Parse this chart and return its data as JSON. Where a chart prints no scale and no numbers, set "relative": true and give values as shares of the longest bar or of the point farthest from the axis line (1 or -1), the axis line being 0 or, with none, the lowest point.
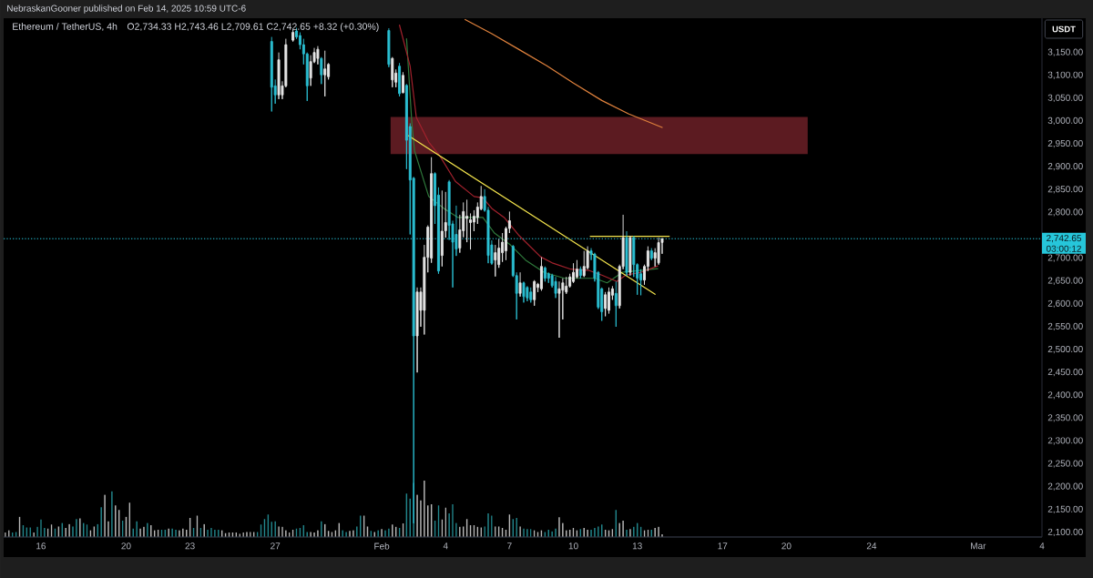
{
  "chart_data": [
    {
      "type": "candlestick",
      "title": "Ethereum / TetherUS, 4h",
      "subtitle": "O2,734.33 H2,743.46 L2,709.61 C2,742.65 +8.32 (+0.30%)",
      "ylabel": "USDT",
      "annotations": [
        "NebraskanGooner published on Feb 14, 2025 10:59 UTC-6",
        "03:00:12"
      ],
      "x": [
        "2025-01-26T20:00",
        "2025-01-27T00:00",
        "2025-01-27T04:00",
        "2025-01-27T08:00",
        "2025-01-27T12:00",
        "2025-01-27T20:00",
        "2025-01-28T00:00",
        "2025-01-28T04:00",
        "2025-01-28T08:00",
        "2025-01-28T12:00",
        "2025-01-28T16:00",
        "2025-01-28T20:00",
        "2025-01-29T00:00",
        "2025-01-29T04:00",
        "2025-01-29T08:00",
        "2025-01-29T12:00",
        "2025-02-01T08:00",
        "2025-02-01T12:00",
        "2025-02-01T16:00",
        "2025-02-01T20:00",
        "2025-02-02T00:00",
        "2025-02-02T04:00",
        "2025-02-02T08:00",
        "2025-02-02T12:00",
        "2025-02-02T16:00",
        "2025-02-02T20:00",
        "2025-02-03T00:00",
        "2025-02-03T04:00",
        "2025-02-03T08:00",
        "2025-02-03T12:00",
        "2025-02-03T16:00",
        "2025-02-03T20:00",
        "2025-02-04T00:00",
        "2025-02-04T04:00",
        "2025-02-04T08:00",
        "2025-02-04T12:00",
        "2025-02-04T16:00",
        "2025-02-04T20:00",
        "2025-02-05T00:00",
        "2025-02-05T04:00",
        "2025-02-05T08:00",
        "2025-02-05T12:00",
        "2025-02-05T16:00",
        "2025-02-05T20:00",
        "2025-02-06T00:00",
        "2025-02-06T04:00",
        "2025-02-06T08:00",
        "2025-02-06T12:00",
        "2025-02-06T16:00",
        "2025-02-06T20:00",
        "2025-02-07T00:00",
        "2025-02-07T04:00",
        "2025-02-07T08:00",
        "2025-02-07T12:00",
        "2025-02-07T16:00",
        "2025-02-07T20:00",
        "2025-02-08T00:00",
        "2025-02-08T04:00",
        "2025-02-08T08:00",
        "2025-02-08T12:00",
        "2025-02-08T16:00",
        "2025-02-08T20:00",
        "2025-02-09T00:00",
        "2025-02-09T04:00",
        "2025-02-09T08:00",
        "2025-02-09T12:00",
        "2025-02-09T16:00",
        "2025-02-09T20:00",
        "2025-02-10T00:00",
        "2025-02-10T04:00",
        "2025-02-10T08:00",
        "2025-02-10T12:00",
        "2025-02-10T16:00",
        "2025-02-10T20:00",
        "2025-02-11T00:00",
        "2025-02-11T04:00",
        "2025-02-11T08:00",
        "2025-02-11T12:00",
        "2025-02-11T16:00",
        "2025-02-11T20:00",
        "2025-02-12T00:00",
        "2025-02-12T04:00",
        "2025-02-12T08:00",
        "2025-02-12T12:00",
        "2025-02-12T16:00",
        "2025-02-12T20:00",
        "2025-02-13T00:00",
        "2025-02-13T04:00",
        "2025-02-13T08:00",
        "2025-02-13T12:00",
        "2025-02-13T16:00",
        "2025-02-13T20:00",
        "2025-02-14T00:00",
        "2025-02-14T04:00"
      ],
      "ohlc": [
        [
          3174,
          3184,
          3021,
          3074
        ],
        [
          3077,
          3091,
          3038,
          3057
        ],
        [
          3057,
          3150,
          3048,
          3134
        ],
        [
          3057,
          3087,
          3048,
          3077
        ],
        [
          3077,
          3180,
          3074,
          3167
        ],
        [
          3177,
          3200,
          3174,
          3194
        ],
        [
          3197,
          3204,
          3180,
          3184
        ],
        [
          3187,
          3194,
          3157,
          3167
        ],
        [
          3167,
          3180,
          3124,
          3147
        ],
        [
          3147,
          3150,
          3044,
          3077
        ],
        [
          3094,
          3144,
          3077,
          3130
        ],
        [
          3130,
          3160,
          3127,
          3150
        ],
        [
          3137,
          3164,
          3124,
          3157
        ],
        [
          3137,
          3140,
          3081,
          3101
        ],
        [
          3101,
          3154,
          3054,
          3114
        ],
        [
          3097,
          3127,
          3091,
          3124
        ],
        [
          3198,
          3203,
          3118,
          3124
        ],
        [
          3090,
          3140,
          3074,
          3137
        ],
        [
          3085,
          3113,
          3074,
          3105
        ],
        [
          3120,
          3127,
          3054,
          3060
        ],
        [
          3062,
          3107,
          3061,
          3100
        ],
        [
          3078,
          3081,
          2895,
          2958
        ],
        [
          2988,
          2995,
          2752,
          2871
        ],
        [
          2875,
          2878,
          2120,
          2530
        ],
        [
          2530,
          2636,
          2450,
          2626
        ],
        [
          2586,
          2636,
          2550,
          2626
        ],
        [
          2586,
          2729,
          2533,
          2702
        ],
        [
          2702,
          2772,
          2669,
          2768
        ],
        [
          2700,
          2921,
          2690,
          2885
        ],
        [
          2885,
          2888,
          2775,
          2815
        ],
        [
          2838,
          2855,
          2666,
          2672
        ],
        [
          2706,
          2848,
          2682,
          2759
        ],
        [
          2760,
          2845,
          2745,
          2778
        ],
        [
          2867,
          2871,
          2740,
          2772
        ],
        [
          2775,
          2782,
          2636,
          2735
        ],
        [
          2752,
          2815,
          2705,
          2720
        ],
        [
          2722,
          2795,
          2712,
          2762
        ],
        [
          2760,
          2822,
          2746,
          2802
        ],
        [
          2787,
          2828,
          2735,
          2792
        ],
        [
          2778,
          2798,
          2719,
          2784
        ],
        [
          2779,
          2805,
          2759,
          2792
        ],
        [
          2789,
          2822,
          2775,
          2812
        ],
        [
          2808,
          2858,
          2805,
          2835
        ],
        [
          2835,
          2851,
          2802,
          2805
        ],
        [
          2805,
          2812,
          2689,
          2706
        ],
        [
          2729,
          2739,
          2686,
          2689
        ],
        [
          2696,
          2729,
          2660,
          2712
        ],
        [
          2686,
          2742,
          2679,
          2722
        ],
        [
          2712,
          2755,
          2692,
          2735
        ],
        [
          2716,
          2769,
          2696,
          2765
        ],
        [
          2765,
          2802,
          2755,
          2782
        ],
        [
          2726,
          2729,
          2659,
          2662
        ],
        [
          2662,
          2669,
          2566,
          2623
        ],
        [
          2623,
          2669,
          2616,
          2646
        ],
        [
          2646,
          2649,
          2603,
          2616
        ],
        [
          2636,
          2639,
          2606,
          2613
        ],
        [
          2626,
          2636,
          2603,
          2609
        ],
        [
          2609,
          2652,
          2596,
          2649
        ],
        [
          2636,
          2646,
          2626,
          2643
        ],
        [
          2633,
          2702,
          2629,
          2682
        ],
        [
          2679,
          2682,
          2649,
          2656
        ],
        [
          2666,
          2669,
          2646,
          2656
        ],
        [
          2662,
          2666,
          2636,
          2640
        ],
        [
          2649,
          2659,
          2613,
          2623
        ],
        [
          2623,
          2649,
          2526,
          2633
        ],
        [
          2630,
          2656,
          2566,
          2646
        ],
        [
          2626,
          2659,
          2622,
          2639
        ],
        [
          2639,
          2666,
          2636,
          2659
        ],
        [
          2649,
          2689,
          2646,
          2669
        ],
        [
          2659,
          2696,
          2656,
          2676
        ],
        [
          2676,
          2682,
          2656,
          2662
        ],
        [
          2662,
          2716,
          2659,
          2682
        ],
        [
          2679,
          2726,
          2676,
          2716
        ],
        [
          2716,
          2722,
          2696,
          2708
        ],
        [
          2709,
          2712,
          2649,
          2656
        ],
        [
          2669,
          2672,
          2589,
          2593
        ],
        [
          2633,
          2636,
          2563,
          2583
        ],
        [
          2590,
          2626,
          2573,
          2620
        ],
        [
          2586,
          2636,
          2579,
          2626
        ],
        [
          2619,
          2639,
          2609,
          2633
        ],
        [
          2623,
          2649,
          2550,
          2596
        ],
        [
          2596,
          2686,
          2590,
          2682
        ],
        [
          2682,
          2795,
          2676,
          2745
        ],
        [
          2745,
          2759,
          2662,
          2669
        ],
        [
          2669,
          2749,
          2662,
          2745
        ],
        [
          2745,
          2749,
          2659,
          2686
        ],
        [
          2686,
          2689,
          2620,
          2656
        ],
        [
          2666,
          2676,
          2619,
          2652
        ],
        [
          2652,
          2686,
          2642,
          2682
        ],
        [
          2682,
          2726,
          2672,
          2716
        ],
        [
          2716,
          2722,
          2696,
          2700
        ],
        [
          2700,
          2722,
          2682,
          2712
        ],
        [
          2690,
          2745,
          2686,
          2734
        ],
        [
          2734.33,
          2743.46,
          2709.61,
          2742.65
        ]
      ],
      "colors": [
        "#2bc0d3",
        "#2bc0d3",
        "#e6e6e6",
        "#e6e6e6",
        "#e6e6e6",
        "#e6e6e6",
        "#2bc0d3",
        "#2bc0d3",
        "#2bc0d3",
        "#2bc0d3",
        "#e6e6e6",
        "#e6e6e6",
        "#e6e6e6",
        "#2bc0d3",
        "#e6e6e6",
        "#e6e6e6",
        "#2bc0d3",
        "#e6e6e6",
        "#e6e6e6",
        "#2bc0d3",
        "#e6e6e6",
        "#2bc0d3",
        "#2bc0d3",
        "#2bc0d3",
        "#e6e6e6",
        "#e6e6e6",
        "#e6e6e6",
        "#e6e6e6",
        "#e6e6e6",
        "#2bc0d3",
        "#2bc0d3",
        "#e6e6e6",
        "#e6e6e6",
        "#2bc0d3",
        "#2bc0d3",
        "#2bc0d3",
        "#e6e6e6",
        "#e6e6e6",
        "#e6e6e6",
        "#e6e6e6",
        "#e6e6e6",
        "#e6e6e6",
        "#e6e6e6",
        "#2bc0d3",
        "#2bc0d3",
        "#2bc0d3",
        "#e6e6e6",
        "#e6e6e6",
        "#e6e6e6",
        "#e6e6e6",
        "#e6e6e6",
        "#2bc0d3",
        "#2bc0d3",
        "#e6e6e6",
        "#2bc0d3",
        "#2bc0d3",
        "#2bc0d3",
        "#e6e6e6",
        "#e6e6e6",
        "#e6e6e6",
        "#2bc0d3",
        "#2bc0d3",
        "#2bc0d3",
        "#2bc0d3",
        "#e6e6e6",
        "#e6e6e6",
        "#e6e6e6",
        "#e6e6e6",
        "#e6e6e6",
        "#e6e6e6",
        "#2bc0d3",
        "#e6e6e6",
        "#e6e6e6",
        "#2bc0d3",
        "#2bc0d3",
        "#2bc0d3",
        "#2bc0d3",
        "#e6e6e6",
        "#e6e6e6",
        "#e6e6e6",
        "#2bc0d3",
        "#e6e6e6",
        "#e6e6e6",
        "#2bc0d3",
        "#e6e6e6",
        "#2bc0d3",
        "#2bc0d3",
        "#2bc0d3",
        "#e6e6e6",
        "#e6e6e6",
        "#2bc0d3",
        "#e6e6e6",
        "#e6e6e6",
        "#e6e6e6"
      ],
      "series": [
        {
          "type": "area",
          "color": "#5c1b21",
          "x": [
            "2025-02-01T10:00",
            "2025-02-21T00:00"
          ],
          "values": [
            null,
            null
          ],
          "lower": [
            2928,
            2928
          ],
          "upper": [
            3009,
            3009
          ]
        },
        {
          "type": "line",
          "color": "#e0823d",
          "x": [
            "2025-02-04T22:00",
            "2025-02-06T04:00",
            "2025-02-07T12:00",
            "2025-02-08T18:00",
            "2025-02-10T00:00",
            "2025-02-11T08:00",
            "2025-02-12T14:00",
            "2025-02-14T04:00"
          ],
          "values": [
            3222,
            3191,
            3155,
            3121,
            3083,
            3045,
            3016,
            2986
          ]
        },
        {
          "type": "line",
          "color": "#2f7a3c",
          "x": [
            "2025-02-02T04:00",
            "2025-02-02T10:00",
            "2025-02-02T13:00",
            "2025-02-03T05:00",
            "2025-02-03T22:00",
            "2025-02-04T14:00",
            "2025-02-05T18:00",
            "2025-02-06T07:00",
            "2025-02-07T01:00",
            "2025-02-07T18:00",
            "2025-02-08T15:00",
            "2025-02-09T14:00",
            "2025-02-11T00:00",
            "2025-02-11T14:00",
            "2025-02-12T07:00",
            "2025-02-13T23:00"
          ],
          "values": [
            3180,
            2994,
            2935,
            2835,
            2809,
            2789,
            2789,
            2755,
            2729,
            2696,
            2669,
            2656,
            2656,
            2646,
            2669,
            2677
          ]
        },
        {
          "type": "line",
          "color": "#a3222d",
          "x": [
            "2025-02-01T20:00",
            "2025-02-02T08:00",
            "2025-02-02T15:00",
            "2025-02-03T05:00",
            "2025-02-03T18:00",
            "2025-02-04T11:00",
            "2025-02-05T08:00",
            "2025-02-05T18:00",
            "2025-02-06T04:00",
            "2025-02-06T18:00",
            "2025-02-07T11:00",
            "2025-02-08T11:00",
            "2025-02-09T01:00",
            "2025-02-09T21:00",
            "2025-02-10T18:00",
            "2025-02-11T08:00",
            "2025-02-12T01:00",
            "2025-02-12T11:00",
            "2025-02-13T04:00",
            "2025-02-13T23:00"
          ],
          "values": [
            3210,
            3120,
            3008,
            2954,
            2922,
            2868,
            2835,
            2832,
            2809,
            2789,
            2749,
            2703,
            2689,
            2676,
            2673,
            2663,
            2649,
            2663,
            2669,
            2683
          ]
        },
        {
          "type": "line",
          "color": "#f2e34c",
          "x": [
            "2025-02-02T06:00",
            "2025-02-13T20:00"
          ],
          "values": [
            2968,
            2621
          ]
        },
        {
          "type": "line",
          "color": "#f2e34c",
          "x": [
            "2025-02-10T19:00",
            "2025-02-14T12:00"
          ],
          "values": [
            2748,
            2748
          ]
        }
      ],
      "xlim": [
        "2025-01-14T06:00",
        "2025-03-04T00:00"
      ],
      "xticks": [
        {
          "value": "2025-01-16",
          "label": "16"
        },
        {
          "value": "2025-01-20",
          "label": "20"
        },
        {
          "value": "2025-01-23",
          "label": "23"
        },
        {
          "value": "2025-01-27",
          "label": "27"
        },
        {
          "value": "2025-02-01",
          "label": "Feb"
        },
        {
          "value": "2025-02-04",
          "label": "4"
        },
        {
          "value": "2025-02-07",
          "label": "7"
        },
        {
          "value": "2025-02-10",
          "label": "10"
        },
        {
          "value": "2025-02-13",
          "label": "13"
        },
        {
          "value": "2025-02-17",
          "label": "17"
        },
        {
          "value": "2025-02-20",
          "label": "20"
        },
        {
          "value": "2025-02-24",
          "label": "24"
        },
        {
          "value": "2025-03-01",
          "label": "Mar"
        },
        {
          "value": "2025-03-04",
          "label": "4"
        }
      ],
      "ylim": [
        2090,
        3225
      ],
      "yticks": [
        {
          "value": 2100,
          "label": "2,100.00"
        },
        {
          "value": 2150,
          "label": "2,150.00"
        },
        {
          "value": 2200,
          "label": "2,200.00"
        },
        {
          "value": 2250,
          "label": "2,250.00"
        },
        {
          "value": 2300,
          "label": "2,300.00"
        },
        {
          "value": 2350,
          "label": "2,350.00"
        },
        {
          "value": 2400,
          "label": "2,400.00"
        },
        {
          "value": 2450,
          "label": "2,450.00"
        },
        {
          "value": 2500,
          "label": "2,500.00"
        },
        {
          "value": 2550,
          "label": "2,550.00"
        },
        {
          "value": 2600,
          "label": "2,600.00"
        },
        {
          "value": 2650,
          "label": "2,650.00"
        },
        {
          "value": 2700,
          "label": "2,700.00"
        },
        {
          "value": 2800,
          "label": "2,800.00"
        },
        {
          "value": 2850,
          "label": "2,850.00"
        },
        {
          "value": 2900,
          "label": "2,900.00"
        },
        {
          "value": 2950,
          "label": "2,950.00"
        },
        {
          "value": 3000,
          "label": "3,000.00"
        },
        {
          "value": 3050,
          "label": "3,050.00"
        },
        {
          "value": 3100,
          "label": "3,100.00"
        },
        {
          "value": 3150,
          "label": "3,150.00"
        }
      ],
      "ref_lines": [
        {
          "axis": "y",
          "value": 2742.65,
          "label": "2,742.65",
          "color": "#26c6da",
          "line_style": "dotted"
        }
      ]
    },
    {
      "type": "bar",
      "relative": true,
      "xlim": [
        "2025-01-14T06:00",
        "2025-03-04T00:00"
      ],
      "x": [
        "2025-01-14T08:00",
        "2025-01-14T12:00",
        "2025-01-14T16:00",
        "2025-01-14T20:00",
        "2025-01-15T00:00",
        "2025-01-15T04:00",
        "2025-01-15T08:00",
        "2025-01-15T12:00",
        "2025-01-15T16:00",
        "2025-01-15T20:00",
        "2025-01-16T00:00",
        "2025-01-16T04:00",
        "2025-01-16T08:00",
        "2025-01-16T12:00",
        "2025-01-16T16:00",
        "2025-01-16T20:00",
        "2025-01-17T00:00",
        "2025-01-17T04:00",
        "2025-01-17T08:00",
        "2025-01-17T12:00",
        "2025-01-17T16:00",
        "2025-01-17T20:00",
        "2025-01-18T00:00",
        "2025-01-18T04:00",
        "2025-01-18T08:00",
        "2025-01-18T12:00",
        "2025-01-18T16:00",
        "2025-01-18T20:00",
        "2025-01-19T00:00",
        "2025-01-19T04:00",
        "2025-01-19T08:00",
        "2025-01-19T12:00",
        "2025-01-19T16:00",
        "2025-01-19T20:00",
        "2025-01-20T00:00",
        "2025-01-20T04:00",
        "2025-01-20T08:00",
        "2025-01-20T12:00",
        "2025-01-20T16:00",
        "2025-01-20T20:00",
        "2025-01-21T00:00",
        "2025-01-21T04:00",
        "2025-01-21T08:00",
        "2025-01-21T12:00",
        "2025-01-21T16:00",
        "2025-01-21T20:00",
        "2025-01-22T00:00",
        "2025-01-22T04:00",
        "2025-01-22T08:00",
        "2025-01-22T12:00",
        "2025-01-22T16:00",
        "2025-01-22T20:00",
        "2025-01-23T00:00",
        "2025-01-23T04:00",
        "2025-01-23T08:00",
        "2025-01-23T12:00",
        "2025-01-23T16:00",
        "2025-01-23T20:00",
        "2025-01-24T00:00",
        "2025-01-24T04:00",
        "2025-01-24T08:00",
        "2025-01-24T12:00",
        "2025-01-24T16:00",
        "2025-01-24T20:00",
        "2025-01-25T00:00",
        "2025-01-25T04:00",
        "2025-01-25T08:00",
        "2025-01-25T12:00",
        "2025-01-25T16:00",
        "2025-01-25T20:00",
        "2025-01-26T00:00",
        "2025-01-26T04:00",
        "2025-01-26T08:00",
        "2025-01-26T12:00",
        "2025-01-26T16:00",
        "2025-01-26T20:00",
        "2025-01-27T00:00",
        "2025-01-27T04:00",
        "2025-01-27T08:00",
        "2025-01-27T12:00",
        "2025-01-27T16:00",
        "2025-01-27T20:00",
        "2025-01-28T00:00",
        "2025-01-28T04:00",
        "2025-01-28T08:00",
        "2025-01-28T12:00",
        "2025-01-28T16:00",
        "2025-01-28T20:00",
        "2025-01-29T00:00",
        "2025-01-29T04:00",
        "2025-01-29T08:00",
        "2025-01-29T12:00",
        "2025-01-29T16:00",
        "2025-01-29T20:00",
        "2025-01-30T00:00",
        "2025-01-30T04:00",
        "2025-01-30T08:00",
        "2025-01-30T12:00",
        "2025-01-30T16:00",
        "2025-01-30T20:00",
        "2025-01-31T00:00",
        "2025-01-31T04:00",
        "2025-01-31T08:00",
        "2025-01-31T12:00",
        "2025-01-31T16:00",
        "2025-01-31T20:00",
        "2025-02-01T00:00",
        "2025-02-01T04:00",
        "2025-02-01T08:00",
        "2025-02-01T12:00",
        "2025-02-01T16:00",
        "2025-02-01T20:00",
        "2025-02-02T00:00",
        "2025-02-02T04:00",
        "2025-02-02T08:00",
        "2025-02-02T12:00",
        "2025-02-02T16:00",
        "2025-02-02T20:00",
        "2025-02-03T00:00",
        "2025-02-03T04:00",
        "2025-02-03T08:00",
        "2025-02-03T12:00",
        "2025-02-03T16:00",
        "2025-02-03T20:00",
        "2025-02-04T00:00",
        "2025-02-04T04:00",
        "2025-02-04T08:00",
        "2025-02-04T12:00",
        "2025-02-04T16:00",
        "2025-02-04T20:00",
        "2025-02-05T00:00",
        "2025-02-05T04:00",
        "2025-02-05T08:00",
        "2025-02-05T12:00",
        "2025-02-05T16:00",
        "2025-02-05T20:00",
        "2025-02-06T00:00",
        "2025-02-06T04:00",
        "2025-02-06T08:00",
        "2025-02-06T12:00",
        "2025-02-06T16:00",
        "2025-02-06T20:00",
        "2025-02-07T00:00",
        "2025-02-07T04:00",
        "2025-02-07T08:00",
        "2025-02-07T12:00",
        "2025-02-07T16:00",
        "2025-02-07T20:00",
        "2025-02-08T00:00",
        "2025-02-08T04:00",
        "2025-02-08T08:00",
        "2025-02-08T12:00",
        "2025-02-08T16:00",
        "2025-02-08T20:00",
        "2025-02-09T00:00",
        "2025-02-09T04:00",
        "2025-02-09T08:00",
        "2025-02-09T12:00",
        "2025-02-09T16:00",
        "2025-02-09T20:00",
        "2025-02-10T00:00",
        "2025-02-10T04:00",
        "2025-02-10T08:00",
        "2025-02-10T12:00",
        "2025-02-10T16:00",
        "2025-02-10T20:00",
        "2025-02-11T00:00",
        "2025-02-11T04:00",
        "2025-02-11T08:00",
        "2025-02-11T12:00",
        "2025-02-11T16:00",
        "2025-02-11T20:00",
        "2025-02-12T00:00",
        "2025-02-12T04:00",
        "2025-02-12T08:00",
        "2025-02-12T12:00",
        "2025-02-12T16:00",
        "2025-02-12T20:00",
        "2025-02-13T00:00",
        "2025-02-13T04:00",
        "2025-02-13T08:00",
        "2025-02-13T12:00",
        "2025-02-13T16:00",
        "2025-02-13T20:00",
        "2025-02-14T00:00",
        "2025-02-14T04:00"
      ],
      "values": [
        0.08,
        0.12,
        0.08,
        0.09,
        0.36,
        0.21,
        0.17,
        0.17,
        0.08,
        0.18,
        0.31,
        0.16,
        0.15,
        0.22,
        0.15,
        0.19,
        0.25,
        0.16,
        0.23,
        0.19,
        0.32,
        0.33,
        0.25,
        0.22,
        0.12,
        0.19,
        0.23,
        0.53,
        0.75,
        0.28,
        0.81,
        0.56,
        0.48,
        0.29,
        0.36,
        0.61,
        0.15,
        0.28,
        0.15,
        0.18,
        0.25,
        0.21,
        0.12,
        0.13,
        0.13,
        0.13,
        0.15,
        0.15,
        0.13,
        0.12,
        0.15,
        0.13,
        0.34,
        0.16,
        0.38,
        0.16,
        0.23,
        0.13,
        0.16,
        0.13,
        0.13,
        0.12,
        0.07,
        0.08,
        0.08,
        0.08,
        0.06,
        0.08,
        0.09,
        0.09,
        0.09,
        0.09,
        0.22,
        0.32,
        0.4,
        0.27,
        0.28,
        0.19,
        0.18,
        0.12,
        0.08,
        0.13,
        0.15,
        0.16,
        0.21,
        0.09,
        0.09,
        0.08,
        0.12,
        0.28,
        0.23,
        0.11,
        0.09,
        0.12,
        0.25,
        0.12,
        0.09,
        0.11,
        0.12,
        0.19,
        0.38,
        0.38,
        0.19,
        0.11,
        0.09,
        0.12,
        0.14,
        0.12,
        0.15,
        0.22,
        0.18,
        0.16,
        0.24,
        0.77,
        0.68,
        0.96,
        0.75,
        0.65,
        1,
        0.56,
        0.58,
        0.29,
        0.56,
        0.31,
        0.52,
        0.42,
        0.58,
        0.25,
        0.18,
        0.19,
        0.32,
        0.21,
        0.21,
        0.18,
        0.17,
        0.19,
        0.42,
        0.38,
        0.19,
        0.19,
        0.16,
        0.13,
        0.4,
        0.32,
        0.34,
        0.19,
        0.15,
        0.14,
        0.14,
        0.12,
        0.09,
        0.12,
        0.09,
        0.13,
        0.1,
        0.15,
        0.35,
        0.25,
        0.12,
        0.13,
        0.16,
        0.12,
        0.14,
        0.16,
        0.13,
        0.13,
        0.16,
        0.19,
        0.22,
        0.13,
        0.12,
        0.14,
        0.48,
        0.25,
        0.29,
        0.13,
        0.14,
        0.18,
        0.25,
        0.18,
        0.12,
        0.13,
        0.13,
        0.16,
        0.18,
        0.05
      ],
      "colors": [
        "#b8b8b8",
        "#b8b8b8",
        "#22868c",
        "#22868c",
        "#b8b8b8",
        "#22868c",
        "#22868c",
        "#22868c",
        "#b8b8b8",
        "#22868c",
        "#22868c",
        "#22868c",
        "#b8b8b8",
        "#b8b8b8",
        "#22868c",
        "#b8b8b8",
        "#22868c",
        "#b8b8b8",
        "#b8b8b8",
        "#22868c",
        "#22868c",
        "#b8b8b8",
        "#22868c",
        "#22868c",
        "#b8b8b8",
        "#b8b8b8",
        "#22868c",
        "#22868c",
        "#b8b8b8",
        "#b8b8b8",
        "#22868c",
        "#b8b8b8",
        "#b8b8b8",
        "#22868c",
        "#b8b8b8",
        "#b8b8b8",
        "#22868c",
        "#22868c",
        "#b8b8b8",
        "#b8b8b8",
        "#22868c",
        "#b8b8b8",
        "#b8b8b8",
        "#b8b8b8",
        "#22868c",
        "#22868c",
        "#b8b8b8",
        "#22868c",
        "#22868c",
        "#b8b8b8",
        "#b8b8b8",
        "#b8b8b8",
        "#b8b8b8",
        "#22868c",
        "#b8b8b8",
        "#22868c",
        "#b8b8b8",
        "#22868c",
        "#22868c",
        "#22868c",
        "#22868c",
        "#b8b8b8",
        "#b8b8b8",
        "#b8b8b8",
        "#b8b8b8",
        "#b8b8b8",
        "#b8b8b8",
        "#b8b8b8",
        "#b8b8b8",
        "#b8b8b8",
        "#b8b8b8",
        "#22868c",
        "#22868c",
        "#22868c",
        "#22868c",
        "#22868c",
        "#22868c",
        "#b8b8b8",
        "#b8b8b8",
        "#b8b8b8",
        "#b8b8b8",
        "#b8b8b8",
        "#22868c",
        "#22868c",
        "#22868c",
        "#22868c",
        "#b8b8b8",
        "#b8b8b8",
        "#b8b8b8",
        "#22868c",
        "#b8b8b8",
        "#b8b8b8",
        "#b8b8b8",
        "#b8b8b8",
        "#b8b8b8",
        "#22868c",
        "#22868c",
        "#b8b8b8",
        "#b8b8b8",
        "#22868c",
        "#22868c",
        "#b8b8b8",
        "#b8b8b8",
        "#22868c",
        "#b8b8b8",
        "#22868c",
        "#b8b8b8",
        "#22868c",
        "#22868c",
        "#b8b8b8",
        "#b8b8b8",
        "#22868c",
        "#b8b8b8",
        "#22868c",
        "#22868c",
        "#22868c",
        "#b8b8b8",
        "#b8b8b8",
        "#b8b8b8",
        "#b8b8b8",
        "#b8b8b8",
        "#22868c",
        "#22868c",
        "#b8b8b8",
        "#b8b8b8",
        "#22868c",
        "#22868c",
        "#22868c",
        "#b8b8b8",
        "#b8b8b8",
        "#b8b8b8",
        "#b8b8b8",
        "#b8b8b8",
        "#b8b8b8",
        "#b8b8b8",
        "#22868c",
        "#22868c",
        "#22868c",
        "#b8b8b8",
        "#b8b8b8",
        "#b8b8b8",
        "#b8b8b8",
        "#b8b8b8",
        "#22868c",
        "#22868c",
        "#b8b8b8",
        "#22868c",
        "#22868c",
        "#22868c",
        "#b8b8b8",
        "#b8b8b8",
        "#b8b8b8",
        "#22868c",
        "#22868c",
        "#22868c",
        "#22868c",
        "#b8b8b8",
        "#b8b8b8",
        "#b8b8b8",
        "#b8b8b8",
        "#b8b8b8",
        "#b8b8b8",
        "#22868c",
        "#b8b8b8",
        "#b8b8b8",
        "#22868c",
        "#22868c",
        "#22868c",
        "#22868c",
        "#b8b8b8",
        "#b8b8b8",
        "#b8b8b8",
        "#22868c",
        "#b8b8b8",
        "#b8b8b8",
        "#22868c",
        "#b8b8b8",
        "#22868c",
        "#22868c",
        "#22868c",
        "#b8b8b8",
        "#b8b8b8",
        "#22868c",
        "#b8b8b8",
        "#b8b8b8",
        "#b8b8b8"
      ]
    }
  ]
}
